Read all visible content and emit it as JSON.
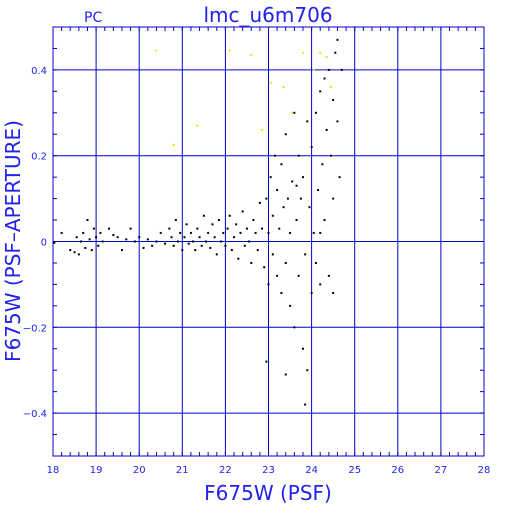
{
  "chart_data": {
    "type": "scatter",
    "title": "lmc_u6m706",
    "corner_label": "PC",
    "xlabel": "F675W (PSF)",
    "ylabel": "F675W (PSF–APERTURE)",
    "xlim": [
      18,
      28
    ],
    "ylim": [
      -0.5,
      0.5
    ],
    "x_ticks": [
      18,
      19,
      20,
      21,
      22,
      23,
      24,
      25,
      26,
      27,
      28
    ],
    "x_tick_labels": [
      "18",
      "19",
      "20",
      "21",
      "22",
      "23",
      "24",
      "25",
      "26",
      "27",
      "28"
    ],
    "y_ticks": [
      -0.4,
      -0.2,
      0,
      0.2,
      0.4
    ],
    "y_tick_labels": [
      "−0.4",
      "−0.2",
      "0",
      "0.2",
      "0.4"
    ],
    "grid": true,
    "colors": {
      "axes": "#0000cc",
      "text": "#2222ee",
      "main_points": "#000000",
      "highlight_points": "#e8e800"
    },
    "series": [
      {
        "points": [
          [
            18.03,
            -0.003
          ],
          [
            18.2,
            0.02
          ],
          [
            18.4,
            -0.02
          ],
          [
            18.5,
            -0.025
          ],
          [
            18.55,
            0.01
          ],
          [
            18.6,
            -0.03
          ],
          [
            18.65,
            0.0
          ],
          [
            18.7,
            0.02
          ],
          [
            18.75,
            -0.015
          ],
          [
            18.8,
            0.05
          ],
          [
            18.85,
            0.005
          ],
          [
            18.9,
            -0.02
          ],
          [
            18.95,
            0.03
          ],
          [
            19.0,
            0.01
          ],
          [
            19.05,
            -0.01
          ],
          [
            19.1,
            0.02
          ],
          [
            19.15,
            0.0
          ],
          [
            19.3,
            0.03
          ],
          [
            19.4,
            0.015
          ],
          [
            19.5,
            0.01
          ],
          [
            19.6,
            -0.02
          ],
          [
            19.7,
            0.005
          ],
          [
            19.8,
            0.03
          ],
          [
            19.9,
            0.0
          ],
          [
            20.0,
            0.01
          ],
          [
            20.1,
            -0.015
          ],
          [
            20.2,
            0.005
          ],
          [
            20.3,
            -0.01
          ],
          [
            20.4,
            0.0
          ],
          [
            20.5,
            0.02
          ],
          [
            20.6,
            -0.005
          ],
          [
            20.7,
            0.03
          ],
          [
            20.75,
            0.01
          ],
          [
            20.8,
            -0.01
          ],
          [
            20.85,
            0.05
          ],
          [
            20.9,
            0.0
          ],
          [
            20.95,
            0.02
          ],
          [
            21.0,
            -0.02
          ],
          [
            21.05,
            0.01
          ],
          [
            21.1,
            0.04
          ],
          [
            21.15,
            -0.005
          ],
          [
            21.2,
            0.02
          ],
          [
            21.25,
            0.0
          ],
          [
            21.3,
            -0.02
          ],
          [
            21.35,
            0.03
          ],
          [
            21.4,
            0.01
          ],
          [
            21.45,
            -0.01
          ],
          [
            21.5,
            0.06
          ],
          [
            21.55,
            0.0
          ],
          [
            21.6,
            0.02
          ],
          [
            21.65,
            -0.015
          ],
          [
            21.7,
            0.04
          ],
          [
            21.75,
            0.01
          ],
          [
            21.8,
            -0.03
          ],
          [
            21.85,
            0.05
          ],
          [
            21.9,
            0.0
          ],
          [
            21.95,
            0.02
          ],
          [
            22.0,
            -0.01
          ],
          [
            22.05,
            0.03
          ],
          [
            22.1,
            0.06
          ],
          [
            22.15,
            -0.02
          ],
          [
            22.2,
            0.01
          ],
          [
            22.25,
            0.04
          ],
          [
            22.3,
            -0.04
          ],
          [
            22.35,
            0.02
          ],
          [
            22.4,
            0.07
          ],
          [
            22.45,
            -0.01
          ],
          [
            22.5,
            0.03
          ],
          [
            22.55,
            0.0
          ],
          [
            22.6,
            -0.05
          ],
          [
            22.65,
            0.05
          ],
          [
            22.7,
            0.02
          ],
          [
            22.75,
            -0.02
          ],
          [
            22.8,
            0.09
          ],
          [
            22.85,
            0.03
          ],
          [
            22.9,
            -0.06
          ],
          [
            22.95,
            0.1
          ],
          [
            23.0,
            0.02
          ],
          [
            23.0,
            -0.1
          ],
          [
            23.05,
            0.15
          ],
          [
            23.1,
            -0.03
          ],
          [
            23.1,
            0.06
          ],
          [
            23.15,
            0.2
          ],
          [
            23.2,
            -0.08
          ],
          [
            23.2,
            0.12
          ],
          [
            23.25,
            0.03
          ],
          [
            23.3,
            -0.12
          ],
          [
            23.3,
            0.18
          ],
          [
            23.35,
            0.08
          ],
          [
            23.4,
            -0.05
          ],
          [
            23.4,
            0.25
          ],
          [
            23.45,
            0.1
          ],
          [
            23.5,
            -0.15
          ],
          [
            23.5,
            0.02
          ],
          [
            23.55,
            0.14
          ],
          [
            23.6,
            -0.2
          ],
          [
            23.6,
            0.3
          ],
          [
            23.65,
            0.05
          ],
          [
            23.7,
            -0.08
          ],
          [
            23.7,
            0.2
          ],
          [
            23.75,
            0.1
          ],
          [
            23.8,
            -0.25
          ],
          [
            23.8,
            0.15
          ],
          [
            23.85,
            -0.03
          ],
          [
            23.9,
            0.28
          ],
          [
            23.9,
            -0.3
          ],
          [
            23.95,
            0.08
          ],
          [
            24.0,
            -0.12
          ],
          [
            24.0,
            0.22
          ],
          [
            24.05,
            0.02
          ],
          [
            24.1,
            0.3
          ],
          [
            24.1,
            -0.05
          ],
          [
            24.15,
            0.12
          ],
          [
            24.2,
            0.35
          ],
          [
            24.2,
            -0.1
          ],
          [
            24.25,
            0.18
          ],
          [
            24.3,
            0.38
          ],
          [
            24.3,
            0.05
          ],
          [
            24.35,
            0.26
          ],
          [
            24.4,
            0.4
          ],
          [
            24.4,
            -0.08
          ],
          [
            24.45,
            0.2
          ],
          [
            24.5,
            0.33
          ],
          [
            24.5,
            0.1
          ],
          [
            24.55,
            0.44
          ],
          [
            24.6,
            0.28
          ],
          [
            24.6,
            0.47
          ],
          [
            24.65,
            0.15
          ],
          [
            24.7,
            0.4
          ],
          [
            22.95,
            -0.28
          ],
          [
            23.4,
            -0.31
          ],
          [
            23.85,
            -0.38
          ],
          [
            24.5,
            -0.12
          ],
          [
            24.2,
            0.02
          ],
          [
            23.65,
            0.13
          ]
        ]
      },
      {
        "points": [
          [
            20.4,
            0.445
          ],
          [
            20.8,
            0.225
          ],
          [
            21.35,
            0.27
          ],
          [
            22.1,
            0.445
          ],
          [
            22.6,
            0.435
          ],
          [
            23.05,
            0.37
          ],
          [
            23.35,
            0.36
          ],
          [
            23.8,
            0.44
          ],
          [
            24.2,
            0.44
          ],
          [
            24.35,
            0.43
          ],
          [
            24.45,
            0.36
          ],
          [
            23.55,
            0.3
          ],
          [
            22.85,
            0.26
          ],
          [
            24.05,
            0.4
          ]
        ]
      }
    ]
  }
}
